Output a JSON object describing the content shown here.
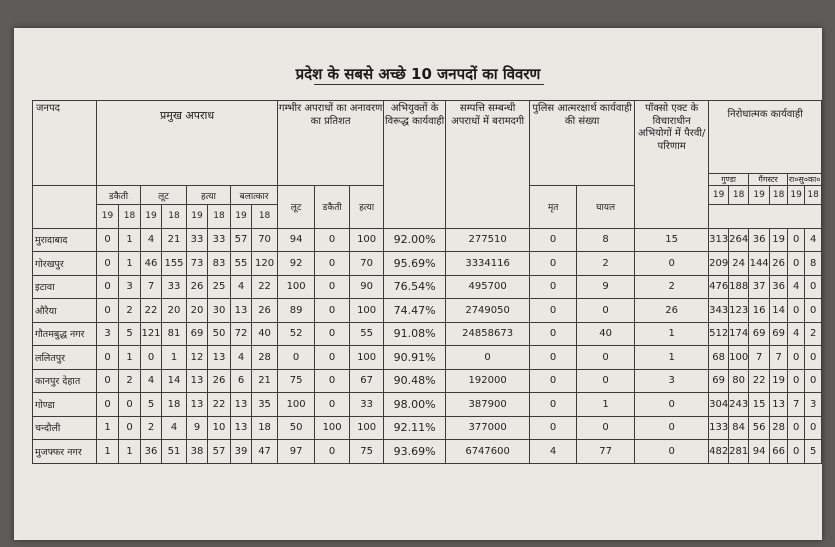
{
  "title": "प्रदेश के सबसे अच्छे 10 जनपदों का विवरण",
  "headers": {
    "district": "जनपद",
    "major_crimes": "प्रमुख अपराध",
    "dakaiti": "डकैती",
    "loot": "लूट",
    "hatya": "हत्या",
    "balatkar": "बलात्कार",
    "disclosure": "गम्भीर अपराधों का अनावरण का प्रतिशत",
    "d_loot": "लूट",
    "d_dakaiti": "डकैती",
    "d_hatya": "हत्या",
    "action": "अभियुक्तों के विरूद्ध कार्यवाही",
    "property": "सम्पत्ति सम्बन्धी अपराधों में बरामदगी",
    "self_defense": "पुलिस आत्मरक्षार्थ कार्यवाही की संख्या",
    "dead": "मृत",
    "injured": "घायल",
    "pocso": "पॉक्सो एक्ट के विचाराधीन अभियोगों में पैरवी/परिणाम",
    "preventive": "निरोधात्मक कार्यवाही",
    "goonda": "गुण्डा",
    "gangster": "गैंगस्टर",
    "rasuka": "रा०सु०का०"
  },
  "years": [
    "19",
    "18"
  ],
  "rows": [
    {
      "district": "मुरादाबाद",
      "vals": [
        "0",
        "1",
        "4",
        "21",
        "33",
        "33",
        "57",
        "70"
      ],
      "disc": [
        "94",
        "0",
        "100"
      ],
      "action": "92.00%",
      "property": "277510",
      "dead": "0",
      "injured": "8",
      "pocso": "15",
      "prev": [
        "313",
        "264",
        "36",
        "19",
        "0",
        "4"
      ]
    },
    {
      "district": "गोरखपुर",
      "vals": [
        "0",
        "1",
        "46",
        "155",
        "73",
        "83",
        "55",
        "120"
      ],
      "disc": [
        "92",
        "0",
        "70"
      ],
      "action": "95.69%",
      "property": "3334116",
      "dead": "0",
      "injured": "2",
      "pocso": "0",
      "prev": [
        "209",
        "24",
        "144",
        "26",
        "0",
        "8"
      ]
    },
    {
      "district": "इटावा",
      "vals": [
        "0",
        "3",
        "7",
        "33",
        "26",
        "25",
        "4",
        "22"
      ],
      "disc": [
        "100",
        "0",
        "90"
      ],
      "action": "76.54%",
      "property": "495700",
      "dead": "0",
      "injured": "9",
      "pocso": "2",
      "prev": [
        "476",
        "188",
        "37",
        "36",
        "4",
        "0"
      ]
    },
    {
      "district": "औरैया",
      "vals": [
        "0",
        "2",
        "22",
        "20",
        "20",
        "30",
        "13",
        "26"
      ],
      "disc": [
        "89",
        "0",
        "100"
      ],
      "action": "74.47%",
      "property": "2749050",
      "dead": "0",
      "injured": "0",
      "pocso": "26",
      "prev": [
        "343",
        "123",
        "16",
        "14",
        "0",
        "0"
      ]
    },
    {
      "district": "गौतमबुद्ध नगर",
      "vals": [
        "3",
        "5",
        "121",
        "81",
        "69",
        "50",
        "72",
        "40"
      ],
      "disc": [
        "52",
        "0",
        "55"
      ],
      "action": "91.08%",
      "property": "24858673",
      "dead": "0",
      "injured": "40",
      "pocso": "1",
      "prev": [
        "512",
        "174",
        "69",
        "69",
        "4",
        "2"
      ]
    },
    {
      "district": "ललितपुर",
      "vals": [
        "0",
        "1",
        "0",
        "1",
        "12",
        "13",
        "4",
        "28"
      ],
      "disc": [
        "0",
        "0",
        "100"
      ],
      "action": "90.91%",
      "property": "0",
      "dead": "0",
      "injured": "0",
      "pocso": "1",
      "prev": [
        "68",
        "100",
        "7",
        "7",
        "0",
        "0"
      ]
    },
    {
      "district": "कानपुर देहात",
      "vals": [
        "0",
        "2",
        "4",
        "14",
        "13",
        "26",
        "6",
        "21"
      ],
      "disc": [
        "75",
        "0",
        "67"
      ],
      "action": "90.48%",
      "property": "192000",
      "dead": "0",
      "injured": "0",
      "pocso": "3",
      "prev": [
        "69",
        "80",
        "22",
        "19",
        "0",
        "0"
      ]
    },
    {
      "district": "गोण्डा",
      "vals": [
        "0",
        "0",
        "5",
        "18",
        "13",
        "22",
        "13",
        "35"
      ],
      "disc": [
        "100",
        "0",
        "33"
      ],
      "action": "98.00%",
      "property": "387900",
      "dead": "0",
      "injured": "1",
      "pocso": "0",
      "prev": [
        "304",
        "243",
        "15",
        "13",
        "7",
        "3"
      ]
    },
    {
      "district": "चन्दौली",
      "vals": [
        "1",
        "0",
        "2",
        "4",
        "9",
        "10",
        "13",
        "18"
      ],
      "disc": [
        "50",
        "100",
        "100"
      ],
      "action": "92.11%",
      "property": "377000",
      "dead": "0",
      "injured": "0",
      "pocso": "0",
      "prev": [
        "133",
        "84",
        "56",
        "28",
        "0",
        "0"
      ]
    },
    {
      "district": "मुजफ्फर नगर",
      "vals": [
        "1",
        "1",
        "36",
        "51",
        "38",
        "57",
        "39",
        "47"
      ],
      "disc": [
        "97",
        "0",
        "75"
      ],
      "action": "93.69%",
      "property": "6747600",
      "dead": "4",
      "injured": "77",
      "pocso": "0",
      "prev": [
        "482",
        "281",
        "94",
        "66",
        "0",
        "5"
      ]
    }
  ]
}
